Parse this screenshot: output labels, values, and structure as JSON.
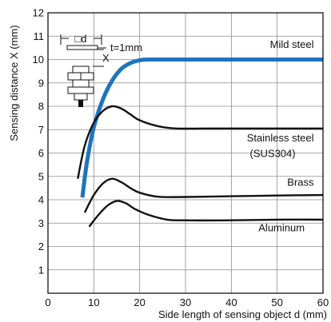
{
  "chart_data": {
    "type": "line",
    "title": "",
    "xlabel": "Side length of sensing object d (mm)",
    "ylabel": "Sensing distance X (mm)",
    "xlim": [
      0,
      60
    ],
    "ylim": [
      0,
      12
    ],
    "xticks": [
      0,
      10,
      20,
      30,
      40,
      50,
      60
    ],
    "yticks": [
      1,
      2,
      3,
      4,
      5,
      6,
      7,
      8,
      9,
      10,
      11,
      12
    ],
    "grid": true,
    "series": [
      {
        "name": "Mild steel",
        "color": "#1e73be",
        "points": [
          [
            7.5,
            4.1
          ],
          [
            8.5,
            5.6
          ],
          [
            10,
            7.1
          ],
          [
            12,
            8.3
          ],
          [
            14,
            9.1
          ],
          [
            16,
            9.6
          ],
          [
            18,
            9.85
          ],
          [
            20,
            9.97
          ],
          [
            22,
            10.0
          ],
          [
            25,
            10.0
          ],
          [
            30,
            10.0
          ],
          [
            40,
            10.0
          ],
          [
            50,
            10.0
          ],
          [
            60,
            10.0
          ]
        ]
      },
      {
        "name": "Stainless steel (SUS304)",
        "color": "#111111",
        "points": [
          [
            6.5,
            4.9
          ],
          [
            8,
            6.3
          ],
          [
            10,
            7.3
          ],
          [
            12,
            7.8
          ],
          [
            14,
            8.0
          ],
          [
            16,
            7.9
          ],
          [
            18,
            7.65
          ],
          [
            20,
            7.4
          ],
          [
            24,
            7.15
          ],
          [
            28,
            7.05
          ],
          [
            35,
            7.05
          ],
          [
            45,
            7.05
          ],
          [
            60,
            7.05
          ]
        ]
      },
      {
        "name": "Brass",
        "color": "#111111",
        "points": [
          [
            8,
            3.45
          ],
          [
            10,
            4.2
          ],
          [
            12,
            4.7
          ],
          [
            14,
            4.9
          ],
          [
            16,
            4.75
          ],
          [
            18,
            4.5
          ],
          [
            20,
            4.3
          ],
          [
            24,
            4.13
          ],
          [
            30,
            4.12
          ],
          [
            40,
            4.15
          ],
          [
            50,
            4.18
          ],
          [
            60,
            4.2
          ]
        ]
      },
      {
        "name": "Aluminum",
        "color": "#111111",
        "points": [
          [
            9,
            2.85
          ],
          [
            11,
            3.35
          ],
          [
            13,
            3.75
          ],
          [
            15,
            3.95
          ],
          [
            17,
            3.85
          ],
          [
            19,
            3.6
          ],
          [
            22,
            3.35
          ],
          [
            26,
            3.15
          ],
          [
            30,
            3.12
          ],
          [
            40,
            3.12
          ],
          [
            50,
            3.15
          ],
          [
            60,
            3.15
          ]
        ]
      }
    ],
    "labels": [
      {
        "text": "Mild steel",
        "x": 58,
        "y": 10.5,
        "anchor": "end"
      },
      {
        "text": "Stainless steel",
        "x": 58,
        "y": 6.5,
        "anchor": "end"
      },
      {
        "text": "(SUS304)",
        "x": 54,
        "y": 5.83,
        "anchor": "end"
      },
      {
        "text": "Brass",
        "x": 58,
        "y": 4.6,
        "anchor": "end"
      },
      {
        "text": "Aluminum",
        "x": 56,
        "y": 2.65,
        "anchor": "end"
      }
    ],
    "inset": {
      "side_label": "□d",
      "thickness_label": "t=1mm",
      "distance_label": "X"
    },
    "colors": {
      "grid": "#8c8c8c",
      "axis": "#000000",
      "mild_steel": "#1e73be",
      "others": "#111111"
    }
  }
}
